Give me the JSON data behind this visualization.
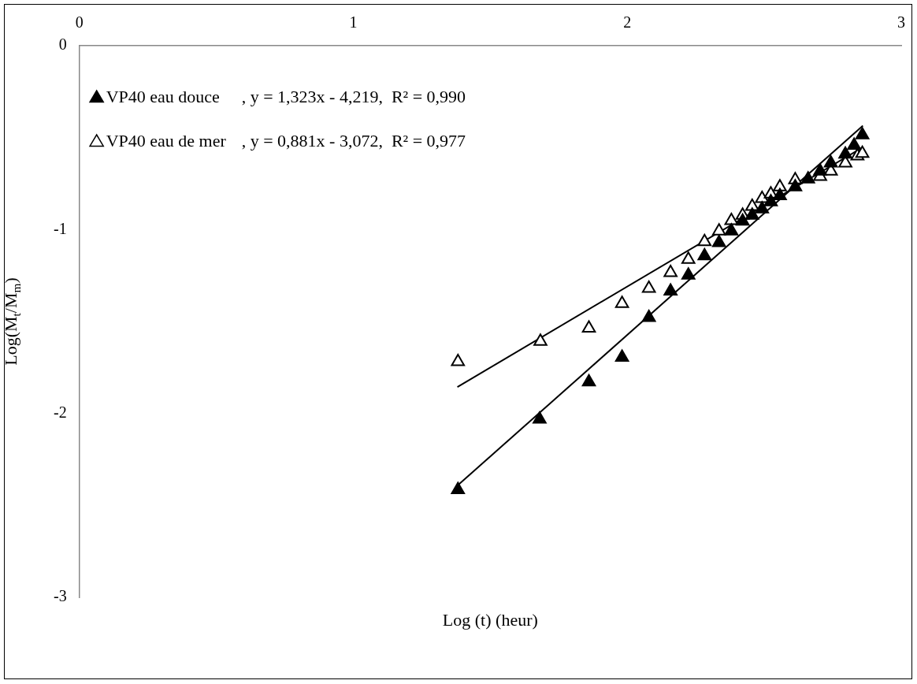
{
  "chart_data": {
    "type": "scatter",
    "xlabel": "Log (t) (heur)",
    "ylabel": "Log(M$_{t}$/M$_{m}$)",
    "xlim": [
      0,
      3
    ],
    "xticks": [
      0,
      1,
      2,
      3
    ],
    "ylim": [
      -3,
      0
    ],
    "yticks": [
      0,
      -1,
      -2,
      -3
    ],
    "grid": false,
    "legend": "top left",
    "marker": "triangle",
    "annotations": [
      ", y = 1,323x - 4,219,  R² = 0,990",
      ", y = 0,881x - 3,072,  R² = 0,977"
    ],
    "series": [
      {
        "name": "VP40 eau douce",
        "color": "#000000",
        "x": [
          1.382,
          1.68,
          1.86,
          1.981,
          2.079,
          2.158,
          2.223,
          2.282,
          2.335,
          2.38,
          2.421,
          2.456,
          2.492,
          2.524,
          2.557,
          2.613,
          2.66,
          2.704,
          2.743,
          2.796,
          2.828,
          2.858
        ],
        "values": [
          -2.415,
          -2.031,
          -1.829,
          -1.695,
          -1.479,
          -1.335,
          -1.248,
          -1.143,
          -1.071,
          -1.008,
          -0.955,
          -0.922,
          -0.888,
          -0.85,
          -0.816,
          -0.768,
          -0.725,
          -0.682,
          -0.639,
          -0.59,
          -0.542,
          -0.485
        ]
      },
      {
        "name": "VP40 eau de mer",
        "color": "#ffffff",
        "x": [
          1.382,
          1.683,
          1.86,
          1.981,
          2.079,
          2.158,
          2.223,
          2.282,
          2.335,
          2.38,
          2.421,
          2.456,
          2.492,
          2.524,
          2.557,
          2.613,
          2.704,
          2.743,
          2.796,
          2.84,
          2.858
        ],
        "values": [
          -1.719,
          -1.608,
          -1.536,
          -1.402,
          -1.32,
          -1.234,
          -1.162,
          -1.066,
          -1.008,
          -0.951,
          -0.922,
          -0.874,
          -0.831,
          -0.807,
          -0.768,
          -0.73,
          -0.711,
          -0.682,
          -0.639,
          -0.6,
          -0.586
        ]
      },
      {
        "type": "line",
        "color": "#000000",
        "marker": "none",
        "x": [
          1.38,
          2.86
        ],
        "values": [
          -2.393,
          -0.435
        ]
      },
      {
        "type": "line",
        "color": "#000000",
        "marker": "none",
        "x": [
          1.38,
          2.86
        ],
        "values": [
          -1.856,
          -0.552
        ]
      }
    ]
  }
}
